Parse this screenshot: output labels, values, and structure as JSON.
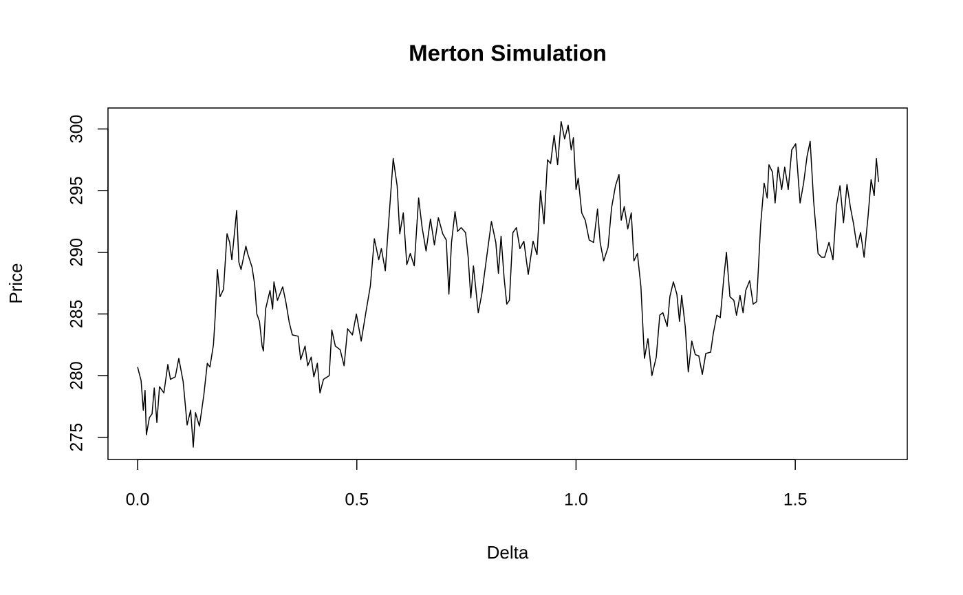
{
  "chart_data": {
    "type": "line",
    "title": "Merton Simulation",
    "xlabel": "Delta",
    "ylabel": "Price",
    "color": "#000000",
    "xlim": [
      -0.0675,
      1.7555
    ],
    "ylim": [
      273.2,
      301.7
    ],
    "xticks": [
      {
        "value": 0,
        "label": "0.0"
      },
      0.5,
      {
        "value": 1,
        "label": "1.0"
      },
      1.5
    ],
    "yticks": [
      275,
      280,
      285,
      290,
      295,
      300
    ],
    "x": [
      0,
      0.008,
      0.013,
      0.017,
      0.02,
      0.027,
      0.033,
      0.038,
      0.044,
      0.05,
      0.06,
      0.069,
      0.075,
      0.086,
      0.094,
      0.104,
      0.113,
      0.121,
      0.127,
      0.132,
      0.141,
      0.151,
      0.159,
      0.165,
      0.173,
      0.177,
      0.182,
      0.188,
      0.196,
      0.204,
      0.21,
      0.215,
      0.226,
      0.231,
      0.236,
      0.247,
      0.251,
      0.261,
      0.267,
      0.272,
      0.278,
      0.284,
      0.287,
      0.292,
      0.302,
      0.308,
      0.311,
      0.319,
      0.331,
      0.338,
      0.346,
      0.353,
      0.366,
      0.372,
      0.382,
      0.388,
      0.396,
      0.402,
      0.41,
      0.416,
      0.424,
      0.437,
      0.443,
      0.451,
      0.462,
      0.471,
      0.479,
      0.49,
      0.499,
      0.51,
      0.521,
      0.531,
      0.54,
      0.55,
      0.556,
      0.565,
      0.573,
      0.583,
      0.592,
      0.598,
      0.606,
      0.614,
      0.622,
      0.631,
      0.641,
      0.649,
      0.658,
      0.668,
      0.677,
      0.686,
      0.696,
      0.704,
      0.71,
      0.716,
      0.724,
      0.73,
      0.738,
      0.748,
      0.754,
      0.76,
      0.766,
      0.777,
      0.785,
      0.798,
      0.807,
      0.817,
      0.823,
      0.829,
      0.836,
      0.842,
      0.848,
      0.856,
      0.864,
      0.872,
      0.881,
      0.891,
      0.902,
      0.911,
      0.919,
      0.927,
      0.935,
      0.942,
      0.95,
      0.958,
      0.966,
      0.974,
      0.982,
      0.989,
      0.994,
      1.0,
      1.005,
      1.013,
      1.021,
      1.03,
      1.04,
      1.049,
      1.055,
      1.063,
      1.073,
      1.081,
      1.09,
      1.098,
      1.103,
      1.11,
      1.118,
      1.126,
      1.132,
      1.14,
      1.148,
      1.156,
      1.164,
      1.173,
      1.183,
      1.191,
      1.198,
      1.208,
      1.214,
      1.222,
      1.23,
      1.236,
      1.241,
      1.249,
      1.256,
      1.264,
      1.272,
      1.28,
      1.288,
      1.296,
      1.307,
      1.313,
      1.321,
      1.329,
      1.337,
      1.343,
      1.351,
      1.36,
      1.366,
      1.374,
      1.381,
      1.387,
      1.396,
      1.404,
      1.412,
      1.421,
      1.429,
      1.436,
      1.44,
      1.448,
      1.454,
      1.461,
      1.469,
      1.476,
      1.484,
      1.492,
      1.501,
      1.511,
      1.519,
      1.527,
      1.534,
      1.542,
      1.552,
      1.56,
      1.567,
      1.577,
      1.586,
      1.594,
      1.602,
      1.61,
      1.618,
      1.626,
      1.633,
      1.641,
      1.649,
      1.657,
      1.666,
      1.673,
      1.68,
      1.685,
      1.69
    ],
    "values": [
      280.7,
      279.6,
      277.2,
      278.8,
      275.2,
      276.6,
      276.9,
      279,
      276.2,
      279.1,
      278.6,
      280.9,
      279.7,
      279.9,
      281.4,
      279.5,
      276,
      277.2,
      274.2,
      277,
      275.9,
      278.4,
      281,
      280.7,
      282.5,
      284.8,
      288.6,
      286.4,
      287,
      291.5,
      290.8,
      289.4,
      293.4,
      289.2,
      288.6,
      290.5,
      289.9,
      288.8,
      287.4,
      285,
      284.4,
      282.4,
      282,
      285.4,
      286.9,
      285.4,
      287.6,
      286.1,
      287.2,
      286,
      284.3,
      283.3,
      283.2,
      281.3,
      282.4,
      280.8,
      281.5,
      279.9,
      281,
      278.6,
      279.7,
      280,
      283.7,
      282.4,
      282.1,
      280.8,
      283.8,
      283.3,
      285,
      282.8,
      285.2,
      287.3,
      291.1,
      289.4,
      290.3,
      288.5,
      292.6,
      297.6,
      295.4,
      291.5,
      293.2,
      289,
      289.9,
      288.9,
      294.4,
      292,
      290.1,
      292.7,
      290.6,
      292.8,
      291.5,
      291,
      286.6,
      290.8,
      293.3,
      291.7,
      292,
      291.6,
      289.6,
      286.3,
      288.9,
      285.1,
      286.6,
      290.1,
      292.5,
      290.8,
      288.3,
      291.3,
      287.9,
      285.8,
      286.1,
      291.6,
      292,
      290.3,
      290.9,
      288.2,
      290.9,
      289.8,
      295,
      292.3,
      297.5,
      297.2,
      299.5,
      297.1,
      300.6,
      299.2,
      300.3,
      298.3,
      299.3,
      295.1,
      296,
      293.2,
      292.6,
      291,
      290.8,
      293.5,
      290.8,
      289.3,
      290.4,
      293.6,
      295.4,
      296.3,
      292.6,
      293.7,
      291.9,
      293.2,
      289.3,
      289.9,
      287.2,
      281.4,
      283,
      280,
      281.5,
      284.9,
      285.1,
      284,
      286.4,
      287.6,
      286.6,
      284.4,
      286.5,
      284,
      280.3,
      282.8,
      281.7,
      281.6,
      280.1,
      281.8,
      281.9,
      283.4,
      284.9,
      284.7,
      287.9,
      290,
      286.4,
      286.1,
      284.9,
      286.5,
      285.1,
      286.9,
      287.7,
      285.8,
      286,
      292.2,
      295.6,
      294.4,
      297.1,
      296.5,
      294,
      296.9,
      295.1,
      296.9,
      295.1,
      298.3,
      298.8,
      294,
      295.6,
      297.8,
      299,
      294.1,
      289.9,
      289.6,
      289.6,
      290.8,
      289.4,
      293.8,
      295.4,
      292.4,
      295.5,
      293.6,
      292.3,
      290.4,
      291.6,
      289.6,
      292.9,
      295.9,
      294.6,
      297.6,
      295.7
    ]
  }
}
